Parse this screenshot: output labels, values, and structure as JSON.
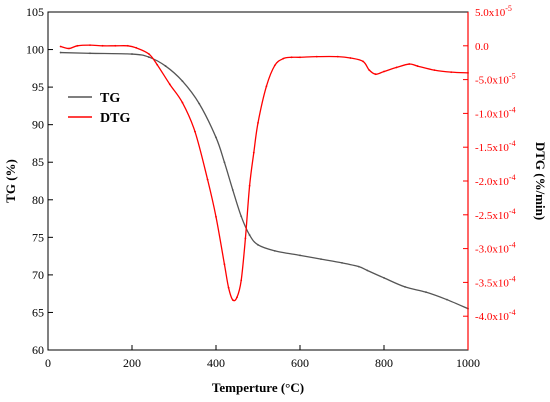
{
  "chart_data": {
    "type": "line",
    "xlabel": "Temperture (°C)",
    "ylabel_left": "TG (%)",
    "ylabel_right": "DTG (%/min)",
    "xlim": [
      0,
      1000
    ],
    "ylim_left": [
      60,
      105
    ],
    "ylim_right": [
      -0.00045,
      5e-05
    ],
    "x_ticks": [
      {
        "value": 0,
        "label": "0"
      },
      {
        "value": 200,
        "label": "200"
      },
      {
        "value": 400,
        "label": "400"
      },
      {
        "value": 600,
        "label": "600"
      },
      {
        "value": 800,
        "label": "800"
      },
      {
        "value": 1000,
        "label": "1000"
      }
    ],
    "y_left_ticks": [
      {
        "value": 60,
        "label": "60"
      },
      {
        "value": 65,
        "label": "65"
      },
      {
        "value": 70,
        "label": "70"
      },
      {
        "value": 75,
        "label": "75"
      },
      {
        "value": 80,
        "label": "80"
      },
      {
        "value": 85,
        "label": "85"
      },
      {
        "value": 90,
        "label": "90"
      },
      {
        "value": 95,
        "label": "95"
      },
      {
        "value": 100,
        "label": "100"
      },
      {
        "value": 105,
        "label": "105"
      }
    ],
    "y_right_ticks": [
      {
        "value": 5e-05,
        "mant": "5.0x10",
        "exp": "-5"
      },
      {
        "value": 0,
        "mant": "0.0",
        "exp": ""
      },
      {
        "value": -5e-05,
        "mant": "-5.0x10",
        "exp": "-5"
      },
      {
        "value": -0.0001,
        "mant": "-1.0x10",
        "exp": "-4"
      },
      {
        "value": -0.00015,
        "mant": "-1.5x10",
        "exp": "-4"
      },
      {
        "value": -0.0002,
        "mant": "-2.0x10",
        "exp": "-4"
      },
      {
        "value": -0.00025,
        "mant": "-2.5x10",
        "exp": "-4"
      },
      {
        "value": -0.0003,
        "mant": "-3.0x10",
        "exp": "-4"
      },
      {
        "value": -0.00035,
        "mant": "-3.5x10",
        "exp": "-4"
      },
      {
        "value": -0.0004,
        "mant": "-4.0x10",
        "exp": "-4"
      }
    ],
    "legend_position": "upper-left",
    "series": [
      {
        "name": "TG",
        "axis": "left",
        "color": "#555555",
        "x": [
          30,
          100,
          200,
          240,
          280,
          320,
          360,
          400,
          420,
          440,
          460,
          480,
          500,
          540,
          600,
          650,
          700,
          740,
          760,
          800,
          850,
          900,
          950,
          1000
        ],
        "y": [
          99.6,
          99.5,
          99.4,
          99.0,
          97.8,
          95.8,
          92.8,
          88.3,
          85.0,
          81.3,
          77.8,
          75.3,
          74.0,
          73.2,
          72.6,
          72.1,
          71.6,
          71.1,
          70.6,
          69.6,
          68.4,
          67.7,
          66.7,
          65.5
        ]
      },
      {
        "name": "DTG",
        "axis": "right",
        "color": "#ff0000",
        "x": [
          30,
          50,
          70,
          100,
          130,
          160,
          190,
          210,
          240,
          260,
          290,
          320,
          350,
          380,
          400,
          420,
          430,
          440,
          450,
          460,
          470,
          480,
          490,
          500,
          520,
          540,
          560,
          580,
          600,
          640,
          690,
          720,
          750,
          765,
          780,
          800,
          830,
          860,
          880,
          920,
          960,
          1000
        ],
        "y": [
          -1e-06,
          -4e-06,
          0,
          1e-06,
          0,
          0,
          0,
          -3e-06,
          -1.2e-05,
          -2.8e-05,
          -5.7e-05,
          -8.4e-05,
          -0.000127,
          -0.000198,
          -0.000253,
          -0.000323,
          -0.000358,
          -0.000376,
          -0.000372,
          -0.000347,
          -0.000285,
          -0.000207,
          -0.000158,
          -0.000114,
          -6e-05,
          -2.9e-05,
          -1.9e-05,
          -1.7e-05,
          -1.7e-05,
          -1.6e-05,
          -1.6e-05,
          -1.8e-05,
          -2.3e-05,
          -3.6e-05,
          -4.2e-05,
          -3.8e-05,
          -3.2e-05,
          -2.7e-05,
          -3e-05,
          -3.6e-05,
          -3.9e-05,
          -4e-05
        ]
      }
    ]
  }
}
